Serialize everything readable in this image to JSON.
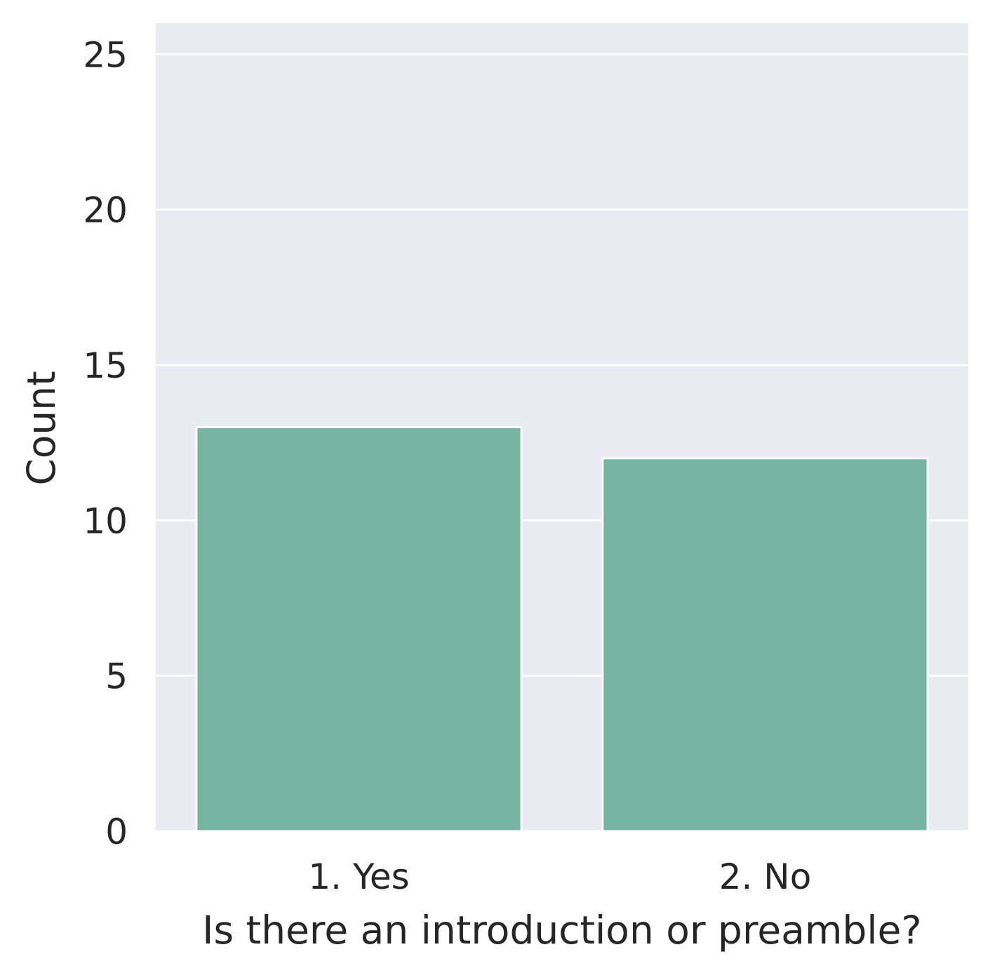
{
  "chart_data": {
    "type": "bar",
    "categories": [
      "1. Yes",
      "2. No"
    ],
    "values": [
      13,
      12
    ],
    "xlabel": "Is there an introduction or preamble?",
    "ylabel": "Count",
    "ylim": [
      0,
      26
    ],
    "yticks": [
      "0",
      "5",
      "10",
      "15",
      "20",
      "25"
    ],
    "grid": true,
    "colors": {
      "bar": "#76b5a1",
      "background": "#eaeaf2",
      "grid": "#ffffff",
      "text": "#262626"
    }
  }
}
